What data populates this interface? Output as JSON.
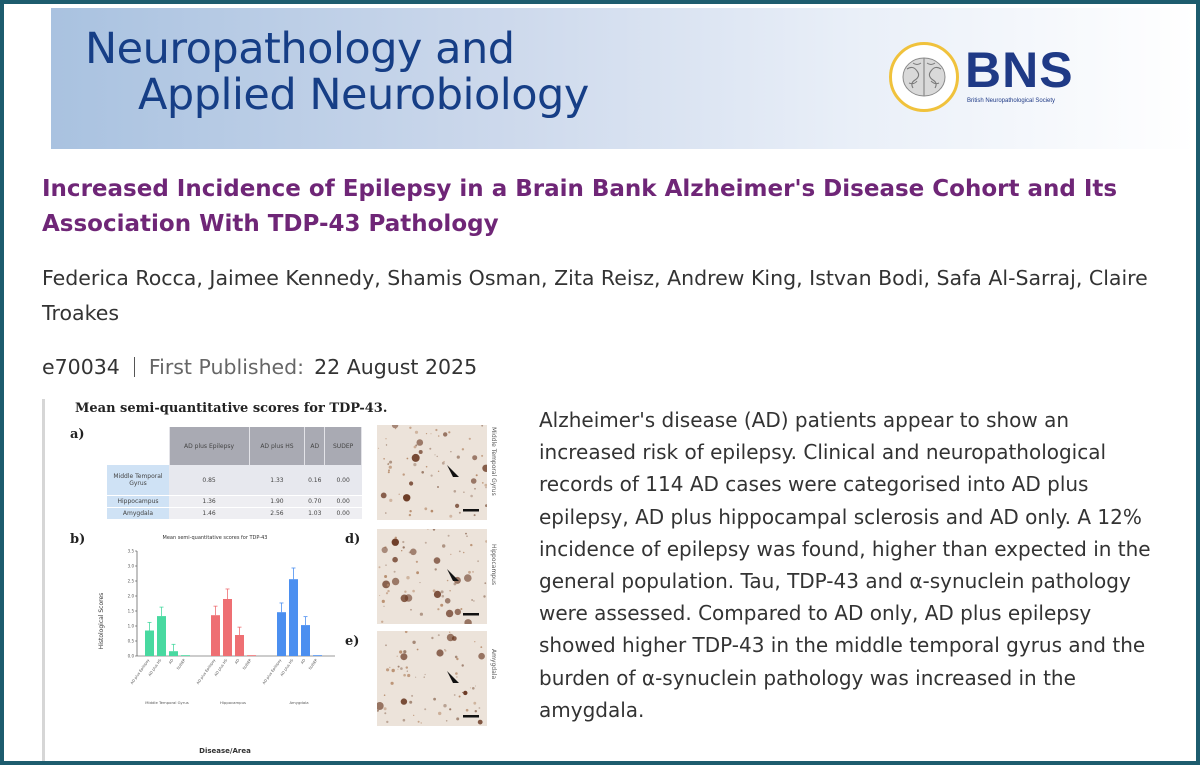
{
  "journal": {
    "name_line1": "Neuropathology and",
    "name_line2": "Applied Neurobiology",
    "society_abbr": "BNS",
    "society_name": "British Neuropathological Society"
  },
  "article": {
    "title": "Increased Incidence of Epilepsy in a Brain Bank Alzheimer's Disease Cohort and Its Association With TDP-43 Pathology",
    "authors": [
      "Federica Rocca",
      "Jaimee Kennedy",
      "Shamis Osman",
      "Zita Reisz",
      "Andrew King",
      "Istvan Bodi",
      "Safa Al-Sarraj",
      "Claire Troakes"
    ],
    "article_id": "e70034",
    "published_label": "First Published:",
    "published_date": "22 August 2025",
    "abstract": "Alzheimer's disease (AD) patients appear to show an increased risk of epilepsy. Clinical and neuropathological records of 114 AD cases were categorised into AD plus epilepsy, AD plus hippocampal sclerosis and AD only. A 12% incidence of epilepsy was found, higher than expected in the general population. Tau, TDP-43 and α-synuclein pathology were assessed. Compared to AD only, AD plus epilepsy showed higher TDP-43 in the middle temporal gyrus and the burden of α-synuclein pathology was increased in the amygdala."
  },
  "figure": {
    "title": "Mean semi-quantitative scores for TDP-43.",
    "panel_labels": [
      "a)",
      "b)",
      "c)",
      "d)",
      "e)"
    ],
    "table": {
      "headers": [
        "AD plus Epilepsy",
        "AD plus HS",
        "AD",
        "SUDEP"
      ],
      "rows": [
        {
          "region": "Middle Temporal Gyrus",
          "values": [
            "0.85",
            "1.33",
            "0.16",
            "0.00"
          ]
        },
        {
          "region": "Hippocampus",
          "values": [
            "1.36",
            "1.90",
            "0.70",
            "0.00"
          ]
        },
        {
          "region": "Amygdala",
          "values": [
            "1.46",
            "2.56",
            "1.03",
            "0.00"
          ]
        }
      ]
    },
    "micro_labels": [
      "Middle Temporal Gyrus",
      "Hippocampus",
      "Amygdala"
    ],
    "chart_data": {
      "type": "bar",
      "title": "Mean semi-quantitative scores for TDP-43",
      "xlabel": "Disease/Area",
      "ylabel": "Histological Scores",
      "ylim": [
        0,
        3.5
      ],
      "groups": [
        "Middle Temporal Gyrus",
        "Hippocampus",
        "Amygdala"
      ],
      "categories": [
        "AD plus Epilepsy",
        "AD plus HS",
        "AD",
        "SUDEP"
      ],
      "series": [
        {
          "group": "Middle Temporal Gyrus",
          "color": "#48d9a0",
          "values": [
            0.85,
            1.33,
            0.16,
            0.0
          ]
        },
        {
          "group": "Hippocampus",
          "color": "#ee6f73",
          "values": [
            1.36,
            1.9,
            0.7,
            0.0
          ]
        },
        {
          "group": "Amygdala",
          "color": "#4b8ff0",
          "values": [
            1.46,
            2.56,
            1.03,
            0.0
          ]
        }
      ]
    }
  }
}
